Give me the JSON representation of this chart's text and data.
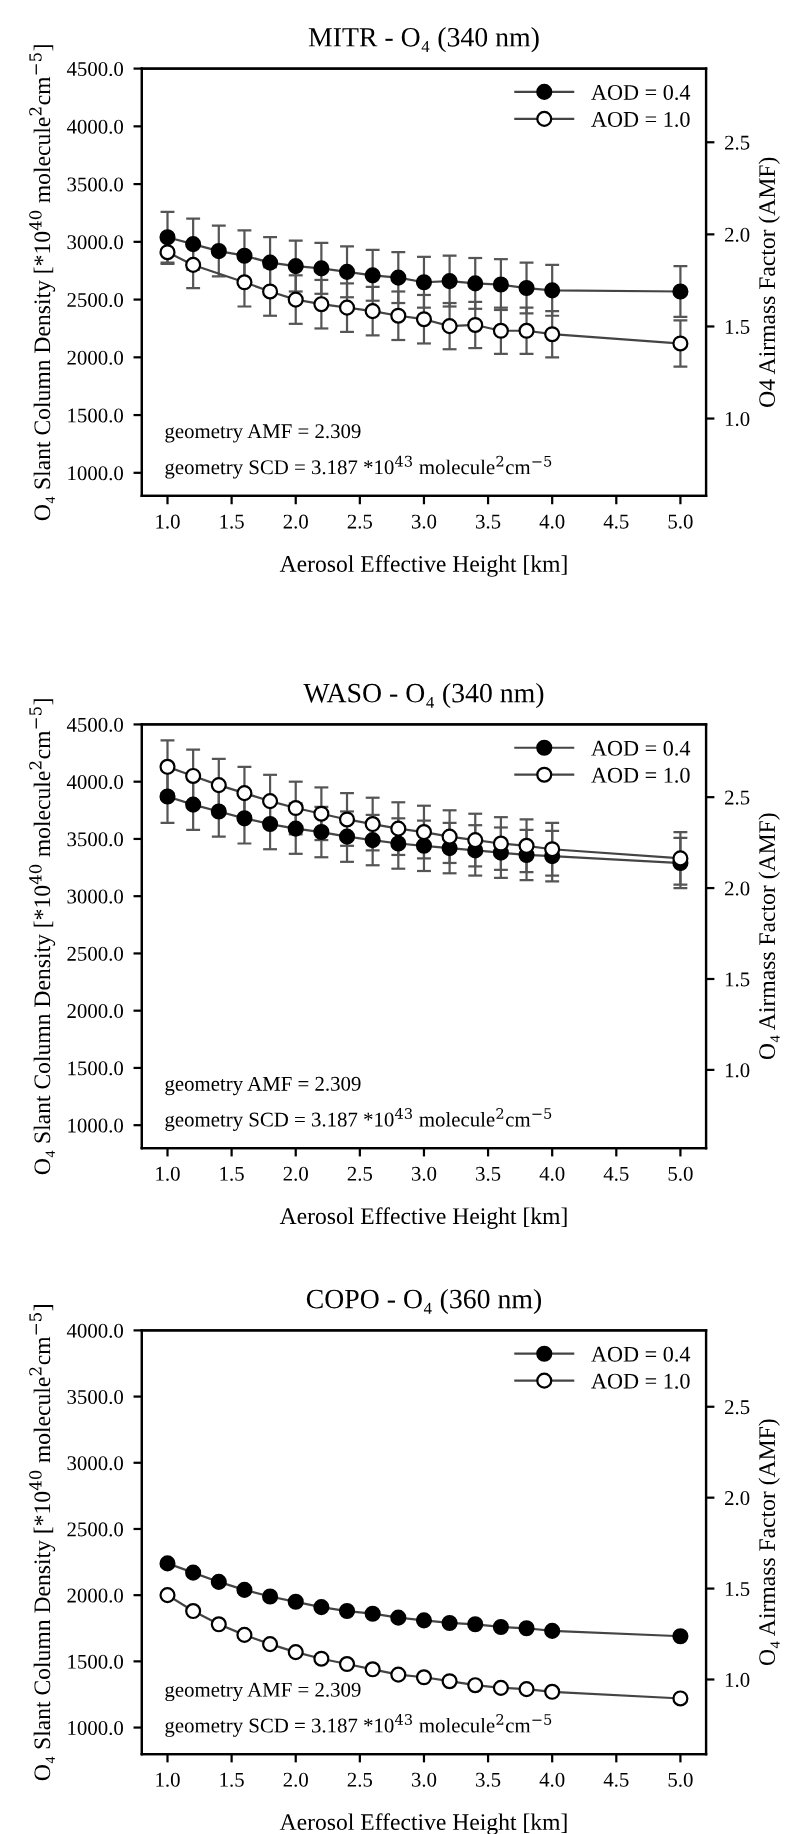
{
  "chart_data": [
    {
      "type": "line",
      "title": "MITR - O₄ (340 nm)",
      "xlabel": "Aerosol Effective Height [km]",
      "ylabel": "O₄ Slant Column Density [*10$^{40}$ molecule$^{2}$cm$^{−5}$]",
      "y2label": "O4 Airmass Factor (AMF)",
      "x": [
        1.0,
        1.2,
        1.4,
        1.6,
        1.8,
        2.0,
        2.2,
        2.4,
        2.6,
        2.8,
        3.0,
        3.2,
        3.4,
        3.6,
        3.8,
        4.0,
        5.0
      ],
      "series": [
        {
          "name": "AOD = 0.4",
          "color": "#000000",
          "values": [
            3040,
            2980,
            2920,
            2880,
            2820,
            2790,
            2770,
            2740,
            2710,
            2690,
            2650,
            2660,
            2640,
            2630,
            2600,
            2580,
            2570
          ],
          "errors": [
            220,
            220,
            220,
            220,
            220,
            220,
            220,
            220,
            220,
            220,
            220,
            220,
            220,
            220,
            220,
            220,
            220
          ]
        },
        {
          "name": "AOD = 1.0",
          "color": "#ffffff",
          "x": [
            1.0,
            1.2,
            1.6,
            1.8,
            2.0,
            2.2,
            2.4,
            2.6,
            2.8,
            3.0,
            3.2,
            3.4,
            3.6,
            3.8,
            4.0,
            5.0
          ],
          "values": [
            2910,
            2800,
            2650,
            2570,
            2500,
            2460,
            2430,
            2400,
            2360,
            2330,
            2270,
            2280,
            2230,
            2230,
            2200,
            2120
          ],
          "errors": [
            100,
            200,
            210,
            210,
            210,
            210,
            210,
            210,
            210,
            210,
            200,
            200,
            200,
            200,
            200,
            200
          ]
        }
      ],
      "xlim": [
        0.8,
        5.2
      ],
      "xticks": [
        {
          "value": 1.0,
          "label": "1.0"
        },
        {
          "value": 1.5,
          "label": "1.5"
        },
        {
          "value": 2.0,
          "label": "2.0"
        },
        {
          "value": 2.5,
          "label": "2.5"
        },
        {
          "value": 3.0,
          "label": "3.0"
        },
        {
          "value": 3.5,
          "label": "3.5"
        },
        {
          "value": 4.0,
          "label": "4.0"
        },
        {
          "value": 4.5,
          "label": "4.5"
        },
        {
          "value": 5.0,
          "label": "5.0"
        }
      ],
      "ylim": [
        800,
        4500
      ],
      "yticks": [
        {
          "value": 1000,
          "label": "1000.0"
        },
        {
          "value": 1500,
          "label": "1500.0"
        },
        {
          "value": 2000,
          "label": "2000.0"
        },
        {
          "value": 2500,
          "label": "2500.0"
        },
        {
          "value": 3000,
          "label": "3000.0"
        },
        {
          "value": 3500,
          "label": "3500.0"
        },
        {
          "value": 4000,
          "label": "4000.0"
        },
        {
          "value": 4500,
          "label": "4500.0"
        }
      ],
      "y2lim": [
        0.58,
        2.9
      ],
      "y2ticks": [
        {
          "value": 1.0,
          "label": "1.0"
        },
        {
          "value": 1.5,
          "label": "1.5"
        },
        {
          "value": 2.0,
          "label": "2.0"
        },
        {
          "value": 2.5,
          "label": "2.5"
        }
      ],
      "annotations": [
        "geometry AMF = 2.309",
        "geometry SCD = 3.187 *10$^{43}$ molecule$^{2}$cm$^{−5}$"
      ],
      "legend": "top right",
      "marker": "circle",
      "line_style": "solid",
      "grid": false
    },
    {
      "type": "line",
      "title": "WASO - O₄ (340 nm)",
      "xlabel": "Aerosol Effective Height [km]",
      "ylabel": "O₄ Slant Column Density [*10$^{40}$ molecule$^{2}$cm$^{−5}$]",
      "y2label": "O₄ Airmass Factor (AMF)",
      "x": [
        1.0,
        1.2,
        1.4,
        1.6,
        1.8,
        2.0,
        2.2,
        2.4,
        2.6,
        2.8,
        3.0,
        3.2,
        3.4,
        3.6,
        3.8,
        4.0,
        5.0
      ],
      "series": [
        {
          "name": "AOD = 0.4",
          "color": "#000000",
          "values": [
            3870,
            3800,
            3740,
            3680,
            3630,
            3590,
            3560,
            3520,
            3490,
            3460,
            3440,
            3420,
            3400,
            3380,
            3360,
            3350,
            3290
          ],
          "errors": [
            230,
            220,
            220,
            220,
            220,
            220,
            220,
            220,
            220,
            220,
            220,
            220,
            220,
            220,
            220,
            220,
            220
          ]
        },
        {
          "name": "AOD = 1.0",
          "color": "#ffffff",
          "values": [
            4130,
            4050,
            3970,
            3900,
            3830,
            3770,
            3720,
            3670,
            3630,
            3590,
            3560,
            3520,
            3490,
            3460,
            3440,
            3410,
            3330
          ],
          "errors": [
            230,
            230,
            230,
            230,
            230,
            230,
            230,
            230,
            230,
            230,
            230,
            230,
            230,
            230,
            230,
            230,
            230
          ]
        }
      ],
      "xlim": [
        0.8,
        5.2
      ],
      "xticks": [
        {
          "value": 1.0,
          "label": "1.0"
        },
        {
          "value": 1.5,
          "label": "1.5"
        },
        {
          "value": 2.0,
          "label": "2.0"
        },
        {
          "value": 2.5,
          "label": "2.5"
        },
        {
          "value": 3.0,
          "label": "3.0"
        },
        {
          "value": 3.5,
          "label": "3.5"
        },
        {
          "value": 4.0,
          "label": "4.0"
        },
        {
          "value": 4.5,
          "label": "4.5"
        },
        {
          "value": 5.0,
          "label": "5.0"
        }
      ],
      "ylim": [
        800,
        4500
      ],
      "yticks": [
        {
          "value": 1000,
          "label": "1000.0"
        },
        {
          "value": 1500,
          "label": "1500.0"
        },
        {
          "value": 2000,
          "label": "2000.0"
        },
        {
          "value": 2500,
          "label": "2500.0"
        },
        {
          "value": 3000,
          "label": "3000.0"
        },
        {
          "value": 3500,
          "label": "3500.0"
        },
        {
          "value": 4000,
          "label": "4000.0"
        },
        {
          "value": 4500,
          "label": "4500.0"
        }
      ],
      "y2lim": [
        0.57,
        2.9
      ],
      "y2ticks": [
        {
          "value": 1.0,
          "label": "1.0"
        },
        {
          "value": 1.5,
          "label": "1.5"
        },
        {
          "value": 2.0,
          "label": "2.0"
        },
        {
          "value": 2.5,
          "label": "2.5"
        }
      ],
      "annotations": [
        "geometry AMF = 2.309",
        "geometry SCD = 3.187 *10$^{43}$ molecule$^{2}$cm$^{−5}$"
      ],
      "legend": "top right",
      "marker": "circle",
      "line_style": "solid",
      "grid": false
    },
    {
      "type": "line",
      "title": "COPO - O₄ (360 nm)",
      "xlabel": "Aerosol Effective Height [km]",
      "ylabel": "O₄ Slant Column Density [*10$^{40}$ molecule$^{2}$cm$^{−5}$]",
      "y2label": "O₄ Airmass Factor (AMF)",
      "x": [
        1.0,
        1.2,
        1.4,
        1.6,
        1.8,
        2.0,
        2.2,
        2.4,
        2.6,
        2.8,
        3.0,
        3.2,
        3.4,
        3.6,
        3.8,
        4.0,
        5.0
      ],
      "series": [
        {
          "name": "AOD = 0.4",
          "color": "#000000",
          "values": [
            2240,
            2170,
            2100,
            2040,
            1990,
            1950,
            1910,
            1880,
            1860,
            1830,
            1810,
            1790,
            1780,
            1760,
            1750,
            1730,
            1690
          ]
        },
        {
          "name": "AOD = 1.0",
          "color": "#ffffff",
          "values": [
            2000,
            1880,
            1780,
            1700,
            1630,
            1570,
            1520,
            1480,
            1440,
            1400,
            1380,
            1350,
            1320,
            1300,
            1290,
            1270,
            1220
          ]
        }
      ],
      "xlim": [
        0.8,
        5.2
      ],
      "xticks": [
        {
          "value": 1.0,
          "label": "1.0"
        },
        {
          "value": 1.5,
          "label": "1.5"
        },
        {
          "value": 2.0,
          "label": "2.0"
        },
        {
          "value": 2.5,
          "label": "2.5"
        },
        {
          "value": 3.0,
          "label": "3.0"
        },
        {
          "value": 3.5,
          "label": "3.5"
        },
        {
          "value": 4.0,
          "label": "4.0"
        },
        {
          "value": 4.5,
          "label": "4.5"
        },
        {
          "value": 5.0,
          "label": "5.0"
        }
      ],
      "ylim": [
        800,
        4000
      ],
      "yticks": [
        {
          "value": 1000,
          "label": "1000.0"
        },
        {
          "value": 1500,
          "label": "1500.0"
        },
        {
          "value": 2000,
          "label": "2000.0"
        },
        {
          "value": 2500,
          "label": "2500.0"
        },
        {
          "value": 3000,
          "label": "3000.0"
        },
        {
          "value": 3500,
          "label": "3500.0"
        },
        {
          "value": 4000,
          "label": "4000.0"
        }
      ],
      "y2lim": [
        0.59,
        2.92
      ],
      "y2ticks": [
        {
          "value": 1.0,
          "label": "1.0"
        },
        {
          "value": 1.5,
          "label": "1.5"
        },
        {
          "value": 2.0,
          "label": "2.0"
        },
        {
          "value": 2.5,
          "label": "2.5"
        }
      ],
      "annotations": [
        "geometry AMF = 2.309",
        "geometry SCD = 3.187 *10$^{43}$ molecule$^{2}$cm$^{−5}$"
      ],
      "legend": "top right",
      "marker": "circle",
      "line_style": "solid",
      "grid": false
    }
  ]
}
